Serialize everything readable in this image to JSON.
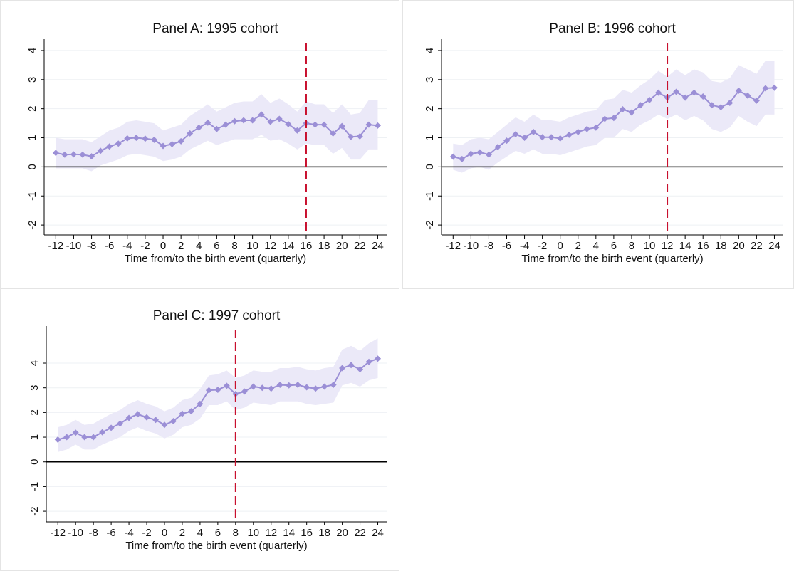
{
  "chart_data": [
    {
      "type": "line",
      "title": "Panel A: 1995 cohort",
      "x_label": "Time from/to the birth event (quarterly)",
      "x": [
        -12,
        -11,
        -10,
        -9,
        -8,
        -7,
        -6,
        -5,
        -4,
        -3,
        -2,
        -1,
        0,
        1,
        2,
        3,
        4,
        5,
        6,
        7,
        8,
        9,
        10,
        11,
        12,
        13,
        14,
        15,
        16,
        17,
        18,
        19,
        20,
        21,
        22,
        23,
        24
      ],
      "values": [
        0.48,
        0.42,
        0.43,
        0.42,
        0.36,
        0.55,
        0.7,
        0.8,
        0.98,
        1.0,
        0.97,
        0.93,
        0.72,
        0.78,
        0.88,
        1.15,
        1.35,
        1.52,
        1.3,
        1.45,
        1.57,
        1.6,
        1.6,
        1.8,
        1.55,
        1.65,
        1.47,
        1.25,
        1.5,
        1.45,
        1.45,
        1.15,
        1.4,
        1.03,
        1.05,
        1.45,
        1.42
      ],
      "lower": [
        -0.05,
        -0.05,
        -0.05,
        -0.05,
        -0.15,
        0.05,
        0.15,
        0.25,
        0.4,
        0.45,
        0.4,
        0.35,
        0.2,
        0.25,
        0.35,
        0.6,
        0.75,
        0.9,
        0.75,
        0.85,
        0.95,
        0.95,
        0.95,
        1.1,
        0.9,
        0.95,
        0.8,
        0.6,
        0.8,
        0.75,
        0.75,
        0.45,
        0.65,
        0.25,
        0.25,
        0.6,
        0.6
      ],
      "upper": [
        1.0,
        0.95,
        0.95,
        0.95,
        0.85,
        1.05,
        1.25,
        1.35,
        1.55,
        1.6,
        1.55,
        1.5,
        1.25,
        1.35,
        1.45,
        1.75,
        1.95,
        2.15,
        1.9,
        2.05,
        2.2,
        2.25,
        2.25,
        2.5,
        2.2,
        2.35,
        2.15,
        1.9,
        2.25,
        2.15,
        2.15,
        1.85,
        2.15,
        1.8,
        1.85,
        2.3,
        2.3
      ],
      "color": "#9b8fd6",
      "band_color": "#ebe9f8",
      "vline": 16,
      "vline_color": "#c8102e",
      "hline": 0,
      "xlim": [
        -13.3,
        25
      ],
      "ylim": [
        -2.34,
        4.39
      ],
      "xticks": [
        -12,
        -10,
        -8,
        -6,
        -4,
        -2,
        0,
        2,
        4,
        6,
        8,
        10,
        12,
        14,
        16,
        18,
        20,
        22,
        24
      ],
      "yticks": [
        -2,
        -1,
        0,
        1,
        2,
        3,
        4
      ]
    },
    {
      "type": "line",
      "title": "Panel B: 1996 cohort",
      "x_label": "Time from/to the birth event (quarterly)",
      "x": [
        -12,
        -11,
        -10,
        -9,
        -8,
        -7,
        -6,
        -5,
        -4,
        -3,
        -2,
        -1,
        0,
        1,
        2,
        3,
        4,
        5,
        6,
        7,
        8,
        9,
        10,
        11,
        12,
        13,
        14,
        15,
        16,
        17,
        18,
        19,
        20,
        21,
        22,
        23,
        24
      ],
      "values": [
        0.35,
        0.27,
        0.45,
        0.5,
        0.42,
        0.68,
        0.9,
        1.12,
        1.0,
        1.2,
        1.02,
        1.02,
        0.98,
        1.1,
        1.2,
        1.3,
        1.35,
        1.65,
        1.68,
        1.98,
        1.87,
        2.12,
        2.3,
        2.55,
        2.38,
        2.58,
        2.38,
        2.55,
        2.42,
        2.12,
        2.05,
        2.2,
        2.62,
        2.45,
        2.28,
        2.7,
        2.72
      ],
      "lower": [
        -0.1,
        -0.2,
        -0.05,
        0.0,
        -0.1,
        0.15,
        0.35,
        0.55,
        0.45,
        0.6,
        0.45,
        0.45,
        0.4,
        0.5,
        0.6,
        0.7,
        0.75,
        1.0,
        1.0,
        1.3,
        1.2,
        1.45,
        1.6,
        1.8,
        1.65,
        1.8,
        1.6,
        1.75,
        1.6,
        1.3,
        1.2,
        1.35,
        1.75,
        1.55,
        1.4,
        1.8,
        1.8
      ],
      "upper": [
        0.8,
        0.75,
        0.95,
        1.0,
        0.95,
        1.2,
        1.45,
        1.7,
        1.55,
        1.8,
        1.6,
        1.6,
        1.55,
        1.7,
        1.8,
        1.9,
        1.95,
        2.3,
        2.35,
        2.65,
        2.55,
        2.8,
        3.0,
        3.3,
        3.1,
        3.35,
        3.15,
        3.35,
        3.25,
        2.95,
        2.9,
        3.05,
        3.5,
        3.35,
        3.2,
        3.65,
        3.65
      ],
      "color": "#9b8fd6",
      "band_color": "#ebe9f8",
      "vline": 12,
      "vline_color": "#c8102e",
      "hline": 0,
      "xlim": [
        -13.3,
        25
      ],
      "ylim": [
        -2.34,
        4.39
      ],
      "xticks": [
        -12,
        -10,
        -8,
        -6,
        -4,
        -2,
        0,
        2,
        4,
        6,
        8,
        10,
        12,
        14,
        16,
        18,
        20,
        22,
        24
      ],
      "yticks": [
        -2,
        -1,
        0,
        1,
        2,
        3,
        4
      ]
    },
    {
      "type": "line",
      "title": "Panel C: 1997 cohort",
      "x_label": "Time from/to the birth event (quarterly)",
      "x": [
        -12,
        -11,
        -10,
        -9,
        -8,
        -7,
        -6,
        -5,
        -4,
        -3,
        -2,
        -1,
        0,
        1,
        2,
        3,
        4,
        5,
        6,
        7,
        8,
        9,
        10,
        11,
        12,
        13,
        14,
        15,
        16,
        17,
        18,
        19,
        20,
        21,
        22,
        23,
        24
      ],
      "values": [
        0.9,
        1.0,
        1.18,
        1.0,
        1.0,
        1.2,
        1.38,
        1.55,
        1.78,
        1.93,
        1.8,
        1.7,
        1.5,
        1.65,
        1.95,
        2.05,
        2.35,
        2.9,
        2.92,
        3.08,
        2.75,
        2.85,
        3.05,
        3.0,
        2.97,
        3.12,
        3.1,
        3.12,
        3.02,
        2.97,
        3.05,
        3.12,
        3.8,
        3.92,
        3.75,
        4.05,
        4.18
      ],
      "lower": [
        0.4,
        0.5,
        0.7,
        0.5,
        0.5,
        0.7,
        0.85,
        1.0,
        1.25,
        1.4,
        1.25,
        1.15,
        0.95,
        1.1,
        1.4,
        1.5,
        1.75,
        2.3,
        2.3,
        2.45,
        2.1,
        2.2,
        2.4,
        2.35,
        2.3,
        2.45,
        2.45,
        2.45,
        2.35,
        2.3,
        2.35,
        2.4,
        3.1,
        3.2,
        3.05,
        3.3,
        3.4
      ],
      "upper": [
        1.4,
        1.5,
        1.7,
        1.5,
        1.55,
        1.75,
        1.95,
        2.1,
        2.35,
        2.5,
        2.35,
        2.25,
        2.05,
        2.2,
        2.5,
        2.6,
        2.95,
        3.5,
        3.55,
        3.7,
        3.4,
        3.5,
        3.7,
        3.65,
        3.65,
        3.8,
        3.8,
        3.85,
        3.75,
        3.7,
        3.8,
        3.85,
        4.55,
        4.7,
        4.5,
        4.8,
        5.0
      ],
      "color": "#9b8fd6",
      "band_color": "#ebe9f8",
      "vline": 8,
      "vline_color": "#c8102e",
      "hline": 0,
      "xlim": [
        -13.3,
        25
      ],
      "ylim": [
        -2.43,
        5.5
      ],
      "xticks": [
        -12,
        -10,
        -8,
        -6,
        -4,
        -2,
        0,
        2,
        4,
        6,
        8,
        10,
        12,
        14,
        16,
        18,
        20,
        22,
        24
      ],
      "yticks": [
        -2,
        -1,
        0,
        1,
        2,
        3,
        4
      ]
    }
  ]
}
